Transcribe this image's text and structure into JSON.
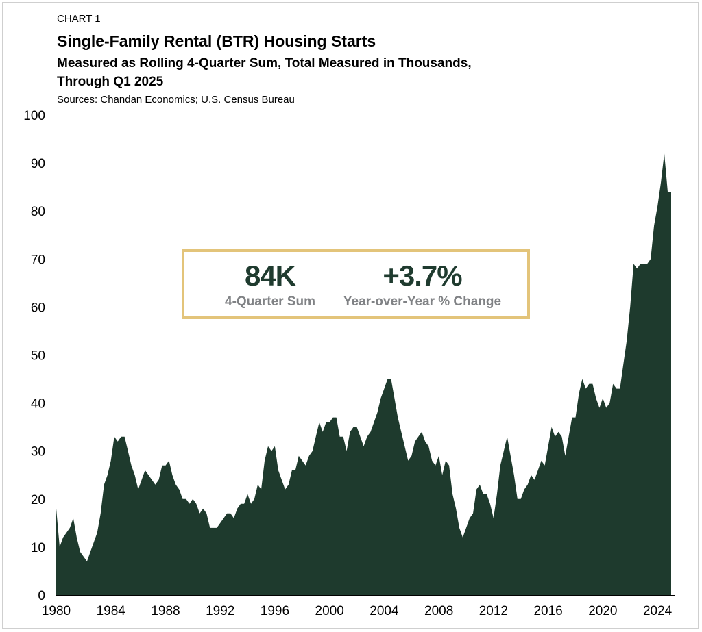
{
  "header": {
    "chart_label": "CHART 1",
    "title": "Single-Family Rental (BTR) Housing Starts",
    "subtitle_line1": "Measured as Rolling 4-Quarter Sum, Total Measured in Thousands,",
    "subtitle_line2": "Through Q1 2025",
    "sources": "Sources: Chandan Economics; U.S. Census Bureau"
  },
  "kpi": {
    "sum_value": "84K",
    "sum_label": "4-Quarter Sum",
    "yoy_value": "+3.7%",
    "yoy_label": "Year-over-Year % Change"
  },
  "colors": {
    "area": "#1e3a2d",
    "kpi_border": "#e3c47a",
    "kpi_value": "#1f3b2f",
    "kpi_label": "#808285"
  },
  "chart_data": {
    "type": "area",
    "title": "Single-Family Rental (BTR) Housing Starts",
    "xlabel": "",
    "ylabel": "",
    "ylim": [
      0,
      100
    ],
    "xlim": [
      1980,
      2025.25
    ],
    "y_ticks": [
      0,
      10,
      20,
      30,
      40,
      50,
      60,
      70,
      80,
      90,
      100
    ],
    "x_ticks": [
      "1980",
      "1984",
      "1988",
      "1992",
      "1996",
      "2000",
      "2004",
      "2008",
      "2012",
      "2016",
      "2020",
      "2024"
    ],
    "grid": false,
    "series": [
      {
        "name": "Single-Family Rental (BTR) Housing Starts (thousands, rolling 4-quarter sum)",
        "points": [
          [
            1980.0,
            18
          ],
          [
            1980.25,
            10
          ],
          [
            1980.5,
            12
          ],
          [
            1980.75,
            13
          ],
          [
            1981.0,
            14
          ],
          [
            1981.25,
            16
          ],
          [
            1981.5,
            12
          ],
          [
            1981.75,
            9
          ],
          [
            1982.0,
            8
          ],
          [
            1982.25,
            7
          ],
          [
            1982.5,
            9
          ],
          [
            1982.75,
            11
          ],
          [
            1983.0,
            13
          ],
          [
            1983.25,
            17
          ],
          [
            1983.5,
            23
          ],
          [
            1983.75,
            25
          ],
          [
            1984.0,
            28
          ],
          [
            1984.25,
            33
          ],
          [
            1984.5,
            32
          ],
          [
            1984.75,
            33
          ],
          [
            1985.0,
            33
          ],
          [
            1985.25,
            30
          ],
          [
            1985.5,
            27
          ],
          [
            1985.75,
            25
          ],
          [
            1986.0,
            22
          ],
          [
            1986.25,
            24
          ],
          [
            1986.5,
            26
          ],
          [
            1986.75,
            25
          ],
          [
            1987.0,
            24
          ],
          [
            1987.25,
            23
          ],
          [
            1987.5,
            24
          ],
          [
            1987.75,
            27
          ],
          [
            1988.0,
            27
          ],
          [
            1988.25,
            28
          ],
          [
            1988.5,
            25
          ],
          [
            1988.75,
            23
          ],
          [
            1989.0,
            22
          ],
          [
            1989.25,
            20
          ],
          [
            1989.5,
            20
          ],
          [
            1989.75,
            19
          ],
          [
            1990.0,
            20
          ],
          [
            1990.25,
            19
          ],
          [
            1990.5,
            17
          ],
          [
            1990.75,
            18
          ],
          [
            1991.0,
            17
          ],
          [
            1991.25,
            14
          ],
          [
            1991.5,
            14
          ],
          [
            1991.75,
            14
          ],
          [
            1992.0,
            15
          ],
          [
            1992.25,
            16
          ],
          [
            1992.5,
            17
          ],
          [
            1992.75,
            17
          ],
          [
            1993.0,
            16
          ],
          [
            1993.25,
            18
          ],
          [
            1993.5,
            19
          ],
          [
            1993.75,
            19
          ],
          [
            1994.0,
            21
          ],
          [
            1994.25,
            19
          ],
          [
            1994.5,
            20
          ],
          [
            1994.75,
            23
          ],
          [
            1995.0,
            22
          ],
          [
            1995.25,
            28
          ],
          [
            1995.5,
            31
          ],
          [
            1995.75,
            30
          ],
          [
            1996.0,
            31
          ],
          [
            1996.25,
            26
          ],
          [
            1996.5,
            24
          ],
          [
            1996.75,
            22
          ],
          [
            1997.0,
            23
          ],
          [
            1997.25,
            26
          ],
          [
            1997.5,
            26
          ],
          [
            1997.75,
            29
          ],
          [
            1998.0,
            28
          ],
          [
            1998.25,
            27
          ],
          [
            1998.5,
            29
          ],
          [
            1998.75,
            30
          ],
          [
            1999.0,
            33
          ],
          [
            1999.25,
            36
          ],
          [
            1999.5,
            34
          ],
          [
            1999.75,
            36
          ],
          [
            2000.0,
            36
          ],
          [
            2000.25,
            37
          ],
          [
            2000.5,
            37
          ],
          [
            2000.75,
            33
          ],
          [
            2001.0,
            33
          ],
          [
            2001.25,
            30
          ],
          [
            2001.5,
            34
          ],
          [
            2001.75,
            35
          ],
          [
            2002.0,
            35
          ],
          [
            2002.25,
            33
          ],
          [
            2002.5,
            31
          ],
          [
            2002.75,
            33
          ],
          [
            2003.0,
            34
          ],
          [
            2003.25,
            36
          ],
          [
            2003.5,
            38
          ],
          [
            2003.75,
            41
          ],
          [
            2004.0,
            43
          ],
          [
            2004.25,
            45
          ],
          [
            2004.5,
            45
          ],
          [
            2004.75,
            41
          ],
          [
            2005.0,
            37
          ],
          [
            2005.25,
            34
          ],
          [
            2005.5,
            31
          ],
          [
            2005.75,
            28
          ],
          [
            2006.0,
            29
          ],
          [
            2006.25,
            32
          ],
          [
            2006.5,
            33
          ],
          [
            2006.75,
            34
          ],
          [
            2007.0,
            32
          ],
          [
            2007.25,
            31
          ],
          [
            2007.5,
            28
          ],
          [
            2007.75,
            27
          ],
          [
            2008.0,
            29
          ],
          [
            2008.25,
            25
          ],
          [
            2008.5,
            28
          ],
          [
            2008.75,
            27
          ],
          [
            2009.0,
            21
          ],
          [
            2009.25,
            18
          ],
          [
            2009.5,
            14
          ],
          [
            2009.75,
            12
          ],
          [
            2010.0,
            14
          ],
          [
            2010.25,
            16
          ],
          [
            2010.5,
            17
          ],
          [
            2010.75,
            22
          ],
          [
            2011.0,
            23
          ],
          [
            2011.25,
            21
          ],
          [
            2011.5,
            21
          ],
          [
            2011.75,
            19
          ],
          [
            2012.0,
            16
          ],
          [
            2012.25,
            21
          ],
          [
            2012.5,
            27
          ],
          [
            2012.75,
            30
          ],
          [
            2013.0,
            33
          ],
          [
            2013.25,
            29
          ],
          [
            2013.5,
            25
          ],
          [
            2013.75,
            20
          ],
          [
            2014.0,
            20
          ],
          [
            2014.25,
            22
          ],
          [
            2014.5,
            23
          ],
          [
            2014.75,
            25
          ],
          [
            2015.0,
            24
          ],
          [
            2015.25,
            26
          ],
          [
            2015.5,
            28
          ],
          [
            2015.75,
            27
          ],
          [
            2016.0,
            31
          ],
          [
            2016.25,
            35
          ],
          [
            2016.5,
            33
          ],
          [
            2016.75,
            34
          ],
          [
            2017.0,
            33
          ],
          [
            2017.25,
            29
          ],
          [
            2017.5,
            33
          ],
          [
            2017.75,
            37
          ],
          [
            2018.0,
            37
          ],
          [
            2018.25,
            42
          ],
          [
            2018.5,
            45
          ],
          [
            2018.75,
            43
          ],
          [
            2019.0,
            44
          ],
          [
            2019.25,
            44
          ],
          [
            2019.5,
            41
          ],
          [
            2019.75,
            39
          ],
          [
            2020.0,
            41
          ],
          [
            2020.25,
            39
          ],
          [
            2020.5,
            40
          ],
          [
            2020.75,
            44
          ],
          [
            2021.0,
            43
          ],
          [
            2021.25,
            43
          ],
          [
            2021.5,
            48
          ],
          [
            2021.75,
            53
          ],
          [
            2022.0,
            60
          ],
          [
            2022.25,
            69
          ],
          [
            2022.5,
            68
          ],
          [
            2022.75,
            69
          ],
          [
            2023.0,
            69
          ],
          [
            2023.25,
            69
          ],
          [
            2023.5,
            70
          ],
          [
            2023.75,
            77
          ],
          [
            2024.0,
            81
          ],
          [
            2024.25,
            86
          ],
          [
            2024.5,
            92
          ],
          [
            2024.75,
            84
          ],
          [
            2025.0,
            84
          ]
        ]
      }
    ]
  }
}
